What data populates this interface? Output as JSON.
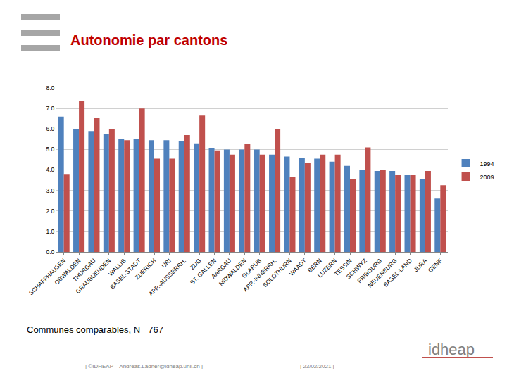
{
  "chart_data": {
    "type": "bar",
    "title": "Autonomie par cantons",
    "categories": [
      "SCHAFFHAUSEN",
      "OBWALDEN",
      "THURGAU",
      "GRAUBUENDEN",
      "WALLIS",
      "BASEL-STADT",
      "ZUERICH",
      "URI",
      "APP.-AUSSERRH.",
      "ZUG",
      "ST. GALLEN",
      "AARGAU",
      "NIDWALDEN",
      "GLARUS",
      "APP.-INNERRH.",
      "SOLOTHURN",
      "WAADT",
      "BERN",
      "LUZERN",
      "TESSIN",
      "SCHWYZ",
      "FRIBOURG",
      "NEUENBURG",
      "BASEL-LAND",
      "JURA",
      "GENF"
    ],
    "series": [
      {
        "name": "1994",
        "color": "#4f81bd",
        "values": [
          6.6,
          6.0,
          5.9,
          5.75,
          5.5,
          5.5,
          5.45,
          5.45,
          5.4,
          5.3,
          5.05,
          5.0,
          5.0,
          5.0,
          4.75,
          4.65,
          4.6,
          4.55,
          4.4,
          4.2,
          4.0,
          3.95,
          3.95,
          3.75,
          3.55,
          2.6
        ]
      },
      {
        "name": "2009",
        "color": "#c0504d",
        "values": [
          3.8,
          7.35,
          6.55,
          6.0,
          5.45,
          7.0,
          4.55,
          4.55,
          5.7,
          6.65,
          4.95,
          4.75,
          5.25,
          4.75,
          6.0,
          3.65,
          4.35,
          4.75,
          4.75,
          3.55,
          5.1,
          4.0,
          3.75,
          3.75,
          3.95,
          3.25
        ]
      }
    ],
    "ylim": [
      0,
      8
    ],
    "yticks": [
      {
        "value": 0,
        "label": "0.0"
      },
      {
        "value": 1,
        "label": "1.0"
      },
      {
        "value": 2,
        "label": "2.0"
      },
      {
        "value": 3,
        "label": "3.0"
      },
      {
        "value": 4,
        "label": "4.0"
      },
      {
        "value": 5,
        "label": "5.0"
      },
      {
        "value": 6,
        "label": "6.0"
      },
      {
        "value": 7,
        "label": "7.0"
      },
      {
        "value": 8,
        "label": "8.0"
      }
    ],
    "grid": true,
    "legend": "right",
    "annotations": [
      "Communes comparables, N= 767",
      "| ©IDHEAP – Andreas.Ladner@idheap.unil.ch |",
      "| 23/02/2021 |",
      "idheap"
    ]
  }
}
